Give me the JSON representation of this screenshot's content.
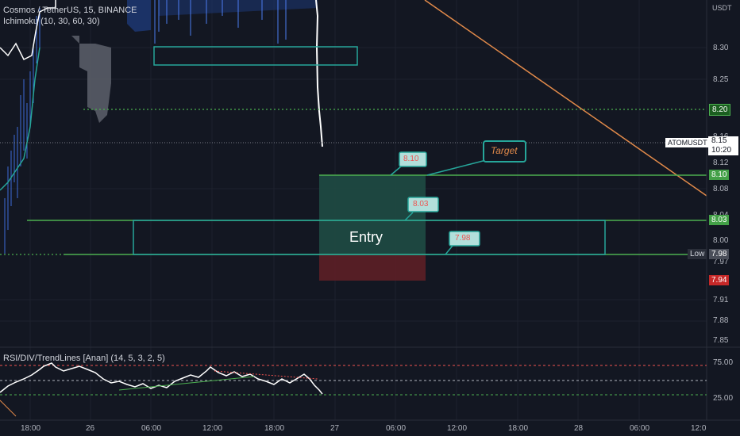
{
  "symbol_title": "Cosmos / TetherUS, 15, BINANCE",
  "ichimoku_label": "Ichimoku (10, 30, 60, 30)",
  "currency": "USDT",
  "rsi_label": "RSI/DIV/TrendLines [Anan] (14, 5, 3, 2, 5)",
  "price_axis": [
    "8.30",
    "8.25",
    "8.16",
    "8.12",
    "8.08",
    "8.04",
    "8.00",
    "7.97",
    "7.91",
    "7.88",
    "7.85"
  ],
  "price_tags": {
    "p820": "8.20",
    "p810": "8.10",
    "p803": "8.03",
    "p794": "7.94",
    "p798": "7.98",
    "current_symbol": "ATOMUSDT",
    "current_price": "8.15",
    "current_time": "10:20",
    "low_label": "Low"
  },
  "rsi_axis": [
    "75.00",
    "25.00"
  ],
  "time_axis": [
    "18:00",
    "26",
    "06:00",
    "12:00",
    "18:00",
    "27",
    "06:00",
    "12:00",
    "18:00",
    "28",
    "06:00",
    "12:0"
  ],
  "annotations": {
    "entry": "Entry",
    "target": "Target",
    "callout_810": "8.10",
    "callout_803": "8.03",
    "callout_798": "7.98"
  },
  "colors": {
    "background": "#131722",
    "green_line": "#4caf50",
    "teal": "#26a69a",
    "orange_trend": "#e28a4a",
    "red_zone": "#5d1f26",
    "green_zone": "#1f4b44",
    "candles": "#5b8cff"
  }
}
